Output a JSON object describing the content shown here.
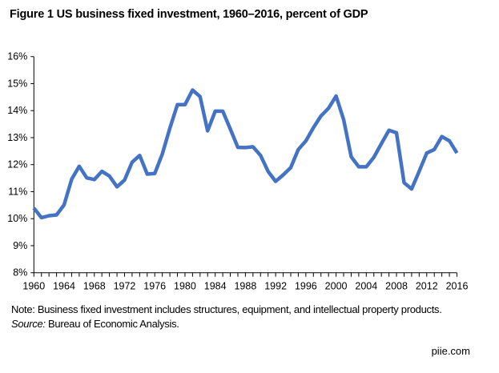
{
  "title": "Figure 1 US business fixed investment, 1960–2016, percent of GDP",
  "note": "Note: Business fixed investment includes structures, equipment, and intellectual property products.",
  "source_label": "Source:",
  "source_text": " Bureau of Economic Analysis.",
  "credit": "piie.com",
  "chart_data": {
    "type": "line",
    "title": "Figure 1 US business fixed investment, 1960–2016, percent of GDP",
    "xlabel": "",
    "ylabel": "",
    "xlim": [
      1960,
      2016
    ],
    "ylim": [
      8,
      16
    ],
    "grid": false,
    "line_color": "#4472C4",
    "y_ticks": [
      "8%",
      "9%",
      "10%",
      "11%",
      "12%",
      "13%",
      "14%",
      "15%",
      "16%"
    ],
    "x_ticks": [
      "1960",
      "1964",
      "1968",
      "1972",
      "1976",
      "1980",
      "1984",
      "1988",
      "1992",
      "1996",
      "2000",
      "2004",
      "2008",
      "2012",
      "2016"
    ],
    "x": [
      1960,
      1961,
      1962,
      1963,
      1964,
      1965,
      1966,
      1967,
      1968,
      1969,
      1970,
      1971,
      1972,
      1973,
      1974,
      1975,
      1976,
      1977,
      1978,
      1979,
      1980,
      1981,
      1982,
      1983,
      1984,
      1985,
      1986,
      1987,
      1988,
      1989,
      1990,
      1991,
      1992,
      1993,
      1994,
      1995,
      1996,
      1997,
      1998,
      1999,
      2000,
      2001,
      2002,
      2003,
      2004,
      2005,
      2006,
      2007,
      2008,
      2009,
      2010,
      2011,
      2012,
      2013,
      2014,
      2015,
      2016
    ],
    "y": [
      10.39,
      10.04,
      10.11,
      10.14,
      10.51,
      11.46,
      11.94,
      11.51,
      11.45,
      11.75,
      11.58,
      11.18,
      11.43,
      12.09,
      12.34,
      11.65,
      11.67,
      12.39,
      13.35,
      14.22,
      14.22,
      14.76,
      14.52,
      13.25,
      13.98,
      13.98,
      13.32,
      12.64,
      12.63,
      12.66,
      12.34,
      11.75,
      11.38,
      11.62,
      11.89,
      12.56,
      12.88,
      13.37,
      13.8,
      14.09,
      14.54,
      13.67,
      12.29,
      11.92,
      11.92,
      12.27,
      12.78,
      13.27,
      13.18,
      11.33,
      11.1,
      11.75,
      12.43,
      12.56,
      13.04,
      12.88,
      12.43
    ]
  }
}
